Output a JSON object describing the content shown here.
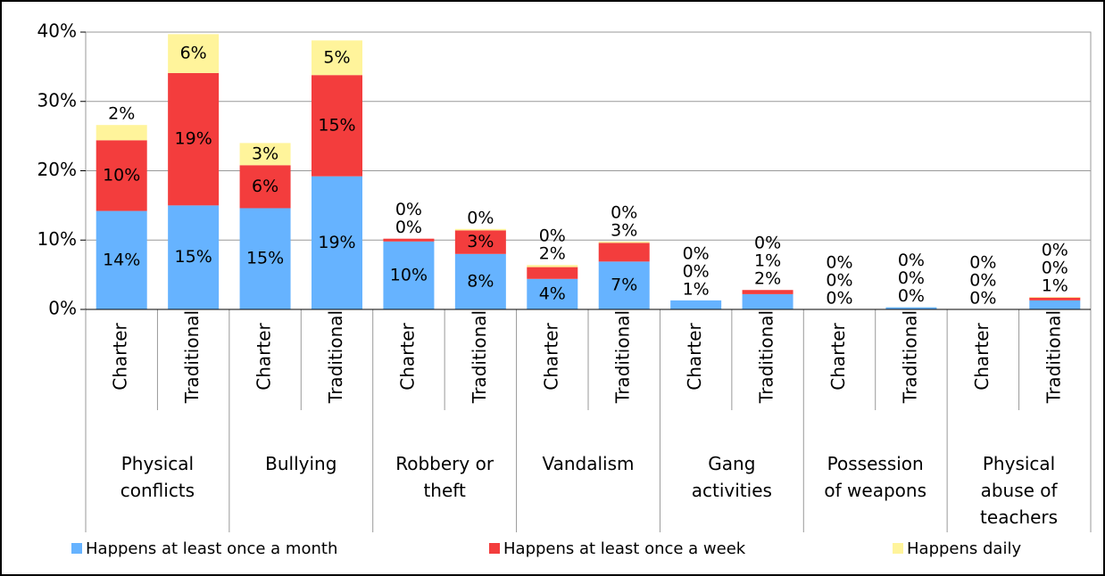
{
  "chart_data": {
    "type": "stacked-bar",
    "groups": [
      "Physical conflicts",
      "Bullying",
      "Robbery or theft",
      "Vandalism",
      "Gang activities",
      "Possession of weapons",
      "Physical abuse of teachers"
    ],
    "categories": [
      "Charter",
      "Traditional",
      "Charter",
      "Traditional",
      "Charter",
      "Traditional",
      "Charter",
      "Traditional",
      "Charter",
      "Traditional",
      "Charter",
      "Traditional",
      "Charter",
      "Traditional"
    ],
    "series": [
      {
        "name": "Happens at least once a month",
        "color": "#66b3ff",
        "values": [
          14.2,
          15.0,
          14.6,
          19.2,
          9.8,
          8.0,
          4.4,
          6.9,
          1.3,
          2.2,
          0,
          0.3,
          0,
          1.3
        ],
        "value_labels": [
          "14%",
          "15%",
          "15%",
          "19%",
          "10%",
          "8%",
          "4%",
          "7%",
          "1%",
          "2%",
          "0%",
          "0%",
          "0%",
          "1%"
        ]
      },
      {
        "name": "Happens at least once a week",
        "color": "#f33d3d",
        "values": [
          10.2,
          19.1,
          6.2,
          14.6,
          0.4,
          3.4,
          1.7,
          2.7,
          0,
          0.6,
          0,
          0,
          0,
          0.4
        ],
        "value_labels": [
          "10%",
          "19%",
          "6%",
          "15%",
          "0%",
          "3%",
          "2%",
          "3%",
          "0%",
          "1%",
          "0%",
          "0%",
          "0%",
          "0%"
        ]
      },
      {
        "name": "Happens daily",
        "color": "#fff49b",
        "values": [
          2.2,
          5.6,
          3.2,
          5.0,
          0,
          0.2,
          0.3,
          0.2,
          0,
          0,
          0,
          0,
          0,
          0.1
        ],
        "value_labels": [
          "2%",
          "6%",
          "3%",
          "5%",
          "0%",
          "0%",
          "0%",
          "0%",
          "0%",
          "0%",
          "0%",
          "0%",
          "0%",
          "0%"
        ]
      }
    ],
    "ylim": [
      0,
      40
    ],
    "yticks": [
      {
        "value": 0,
        "label": "0%"
      },
      {
        "value": 10,
        "label": "10%"
      },
      {
        "value": 20,
        "label": "20%"
      },
      {
        "value": 30,
        "label": "30%"
      },
      {
        "value": 40,
        "label": "40%"
      }
    ],
    "grid": true,
    "legend": "bottom"
  }
}
